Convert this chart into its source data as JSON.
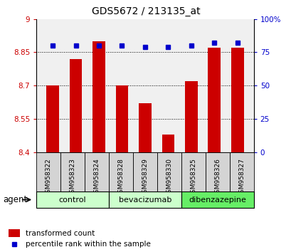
{
  "title": "GDS5672 / 213135_at",
  "samples": [
    "GSM958322",
    "GSM958323",
    "GSM958324",
    "GSM958328",
    "GSM958329",
    "GSM958330",
    "GSM958325",
    "GSM958326",
    "GSM958327"
  ],
  "transformed_counts": [
    8.7,
    8.82,
    8.9,
    8.7,
    8.62,
    8.48,
    8.72,
    8.87,
    8.87
  ],
  "percentile_ranks": [
    80,
    80,
    80,
    80,
    79,
    79,
    80,
    82,
    82
  ],
  "ylim_left": [
    8.4,
    9.0
  ],
  "ylim_right": [
    0,
    100
  ],
  "yticks_left": [
    8.4,
    8.55,
    8.7,
    8.85,
    9.0
  ],
  "ytick_labels_left": [
    "8.4",
    "8.55",
    "8.7",
    "8.85",
    "9"
  ],
  "yticks_right": [
    0,
    25,
    50,
    75,
    100
  ],
  "ytick_labels_right": [
    "0",
    "25",
    "50",
    "75",
    "100%"
  ],
  "groups": [
    {
      "label": "control",
      "indices": [
        0,
        1,
        2
      ],
      "color": "#ccffcc"
    },
    {
      "label": "bevacizumab",
      "indices": [
        3,
        4,
        5
      ],
      "color": "#ccffcc"
    },
    {
      "label": "dibenzazepine",
      "indices": [
        6,
        7,
        8
      ],
      "color": "#66ee66"
    }
  ],
  "bar_color": "#cc0000",
  "dot_color": "#0000cc",
  "bar_bottom": 8.4,
  "plot_bg_color": "#f0f0f0",
  "legend_bar_label": "transformed count",
  "legend_dot_label": "percentile rank within the sample",
  "agent_label": "agent",
  "left_tick_color": "#cc0000",
  "right_tick_color": "#0000cc",
  "tick_label_bg": "#d0d0d0"
}
